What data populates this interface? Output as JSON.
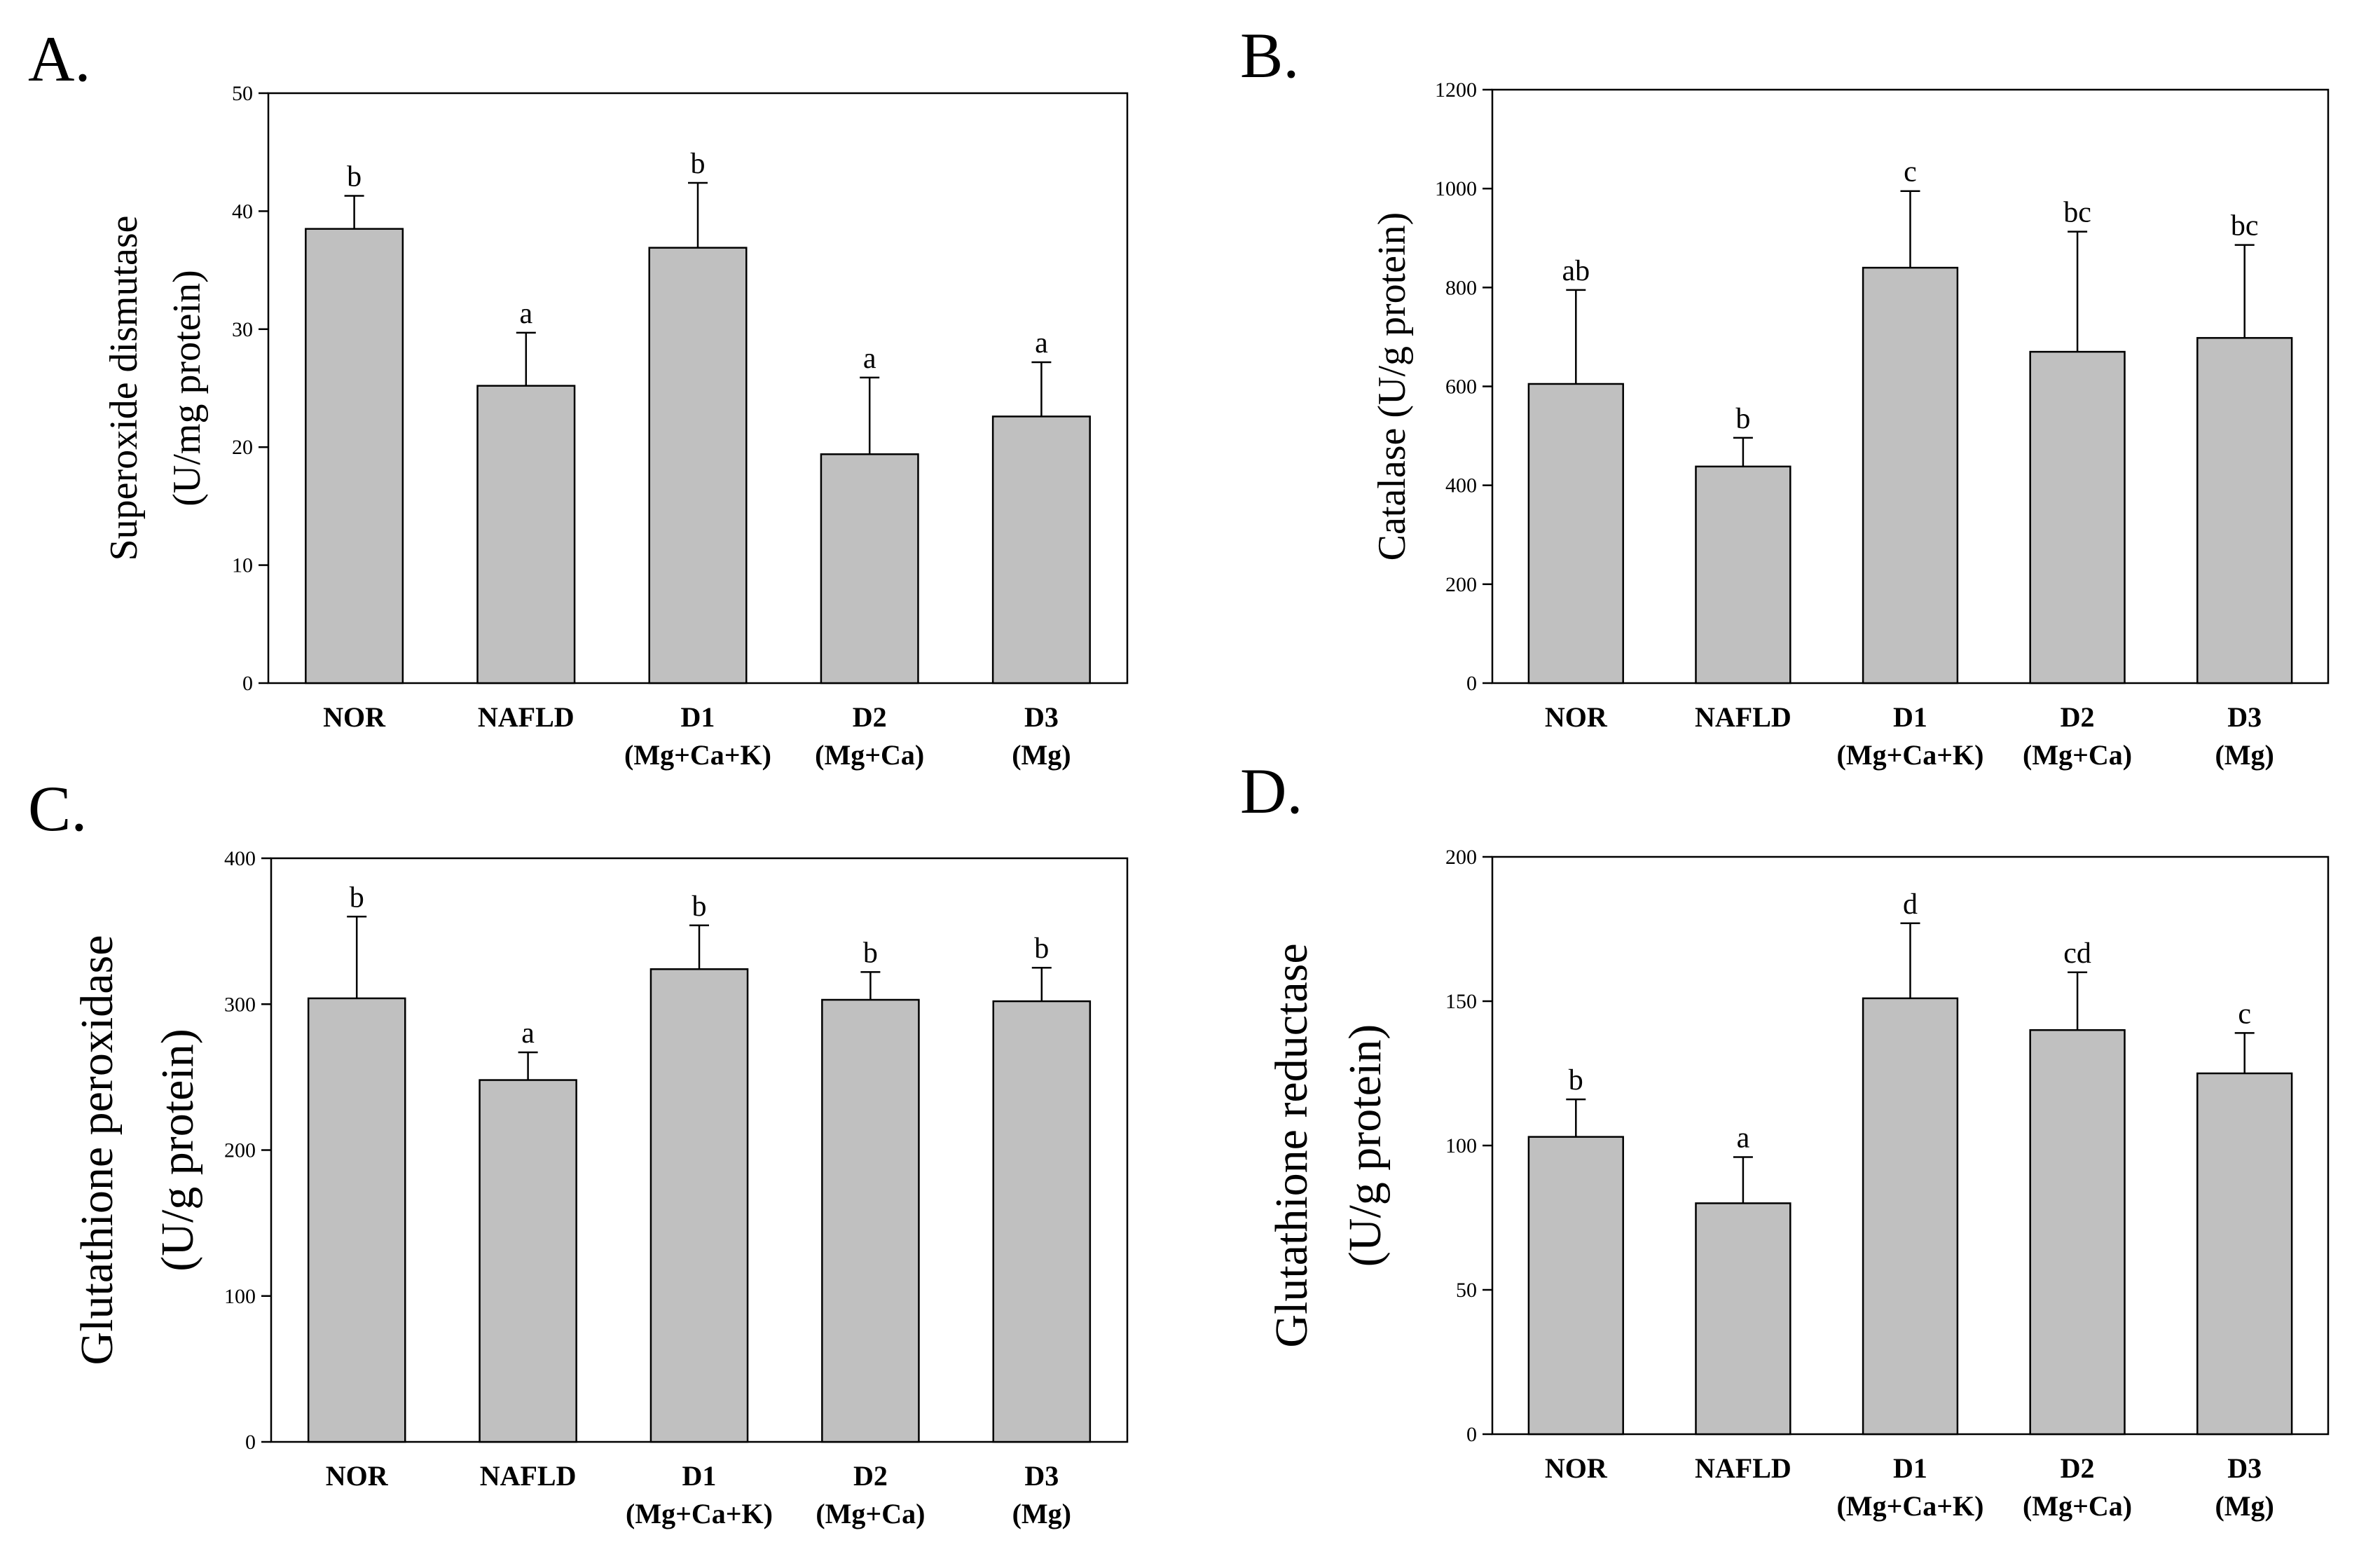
{
  "figure": {
    "categories": [
      {
        "line1": "NOR",
        "line2": ""
      },
      {
        "line1": "NAFLD",
        "line2": ""
      },
      {
        "line1": "D1",
        "line2": "(Mg+Ca+K)"
      },
      {
        "line1": "D2",
        "line2": "(Mg+Ca)"
      },
      {
        "line1": "D3",
        "line2": "(Mg)"
      }
    ],
    "bar_color": "#c0c0c0"
  },
  "chart_data": [
    {
      "type": "bar",
      "panel": "A.",
      "ylabel_lines": [
        "Superoxide dismutase",
        "(U/mg protein)"
      ],
      "ylim": [
        0,
        50
      ],
      "ticks": [
        0,
        10,
        20,
        30,
        40,
        50
      ],
      "tick_labels": [
        "0",
        "10",
        "20",
        "30",
        "40",
        "50"
      ],
      "categories": [
        "NOR",
        "NAFLD",
        "D1 (Mg+Ca+K)",
        "D2 (Mg+Ca)",
        "D3 (Mg)"
      ],
      "values": [
        38.5,
        25.2,
        36.9,
        19.4,
        22.6
      ],
      "errors": [
        2.8,
        4.5,
        5.5,
        6.5,
        4.6
      ],
      "significance": [
        "b",
        "a",
        "b",
        "a",
        "a"
      ]
    },
    {
      "type": "bar",
      "panel": "B.",
      "ylabel_lines": [
        "Catalase (U/g protein)"
      ],
      "ylim": [
        0,
        1200
      ],
      "ticks": [
        0,
        200,
        400,
        600,
        800,
        1000,
        1200
      ],
      "tick_labels": [
        "0",
        "200",
        "400",
        "600",
        "800",
        "1000",
        "1200"
      ],
      "categories": [
        "NOR",
        "NAFLD",
        "D1 (Mg+Ca+K)",
        "D2 (Mg+Ca)",
        "D3 (Mg)"
      ],
      "values": [
        605,
        438,
        840,
        670,
        698
      ],
      "errors": [
        190,
        58,
        155,
        243,
        188
      ],
      "significance": [
        "ab",
        "b",
        "c",
        "bc",
        "bc"
      ]
    },
    {
      "type": "bar",
      "panel": "C.",
      "ylabel_lines": [
        "Glutathione  peroxidase",
        "(U/g protein)"
      ],
      "ylim": [
        0,
        400
      ],
      "ticks": [
        0,
        100,
        200,
        300,
        400
      ],
      "tick_labels": [
        "0",
        "100",
        "200",
        "300",
        "400"
      ],
      "categories": [
        "NOR",
        "NAFLD",
        "D1 (Mg+Ca+K)",
        "D2 (Mg+Ca)",
        "D3 (Mg)"
      ],
      "values": [
        304,
        248,
        324,
        303,
        302
      ],
      "errors": [
        56,
        19,
        30,
        19,
        23
      ],
      "significance": [
        "b",
        "a",
        "b",
        "b",
        "b"
      ]
    },
    {
      "type": "bar",
      "panel": "D.",
      "ylabel_lines": [
        "Glutathione reductase",
        "(U/g protein)"
      ],
      "ylim": [
        0,
        200
      ],
      "ticks": [
        0,
        50,
        100,
        150,
        200
      ],
      "tick_labels": [
        "0",
        "50",
        "100",
        "150",
        "200"
      ],
      "categories": [
        "NOR",
        "NAFLD",
        "D1 (Mg+Ca+K)",
        "D2 (Mg+Ca)",
        "D3 (Mg)"
      ],
      "values": [
        103,
        80,
        151,
        140,
        125
      ],
      "errors": [
        13,
        16,
        26,
        20,
        14
      ],
      "significance": [
        "b",
        "a",
        "d",
        "cd",
        "c"
      ]
    }
  ]
}
